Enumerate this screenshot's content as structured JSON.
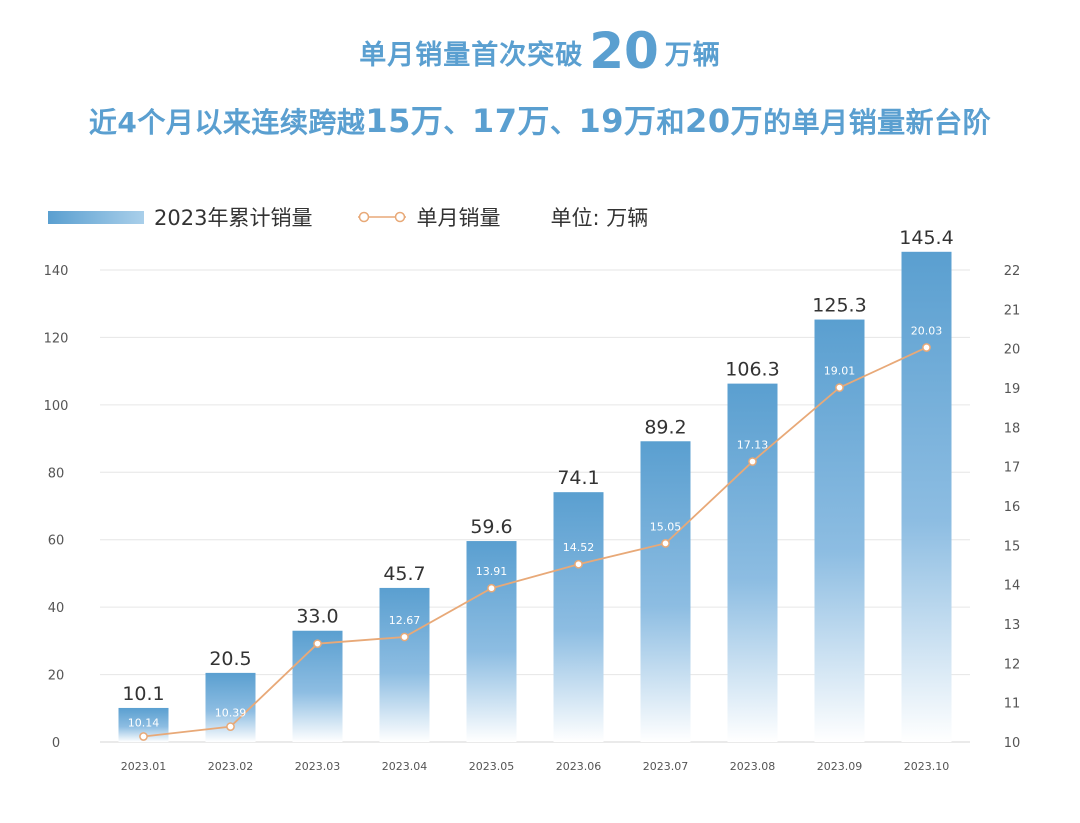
{
  "header": {
    "line1_prefix": "单月销量首次突破",
    "line1_number": "20",
    "line1_suffix": "万辆",
    "line2_parts": [
      {
        "text": "近4个月以来连续跨越",
        "big": false
      },
      {
        "text": "15万",
        "big": true
      },
      {
        "text": "、",
        "big": false
      },
      {
        "text": "17万",
        "big": true
      },
      {
        "text": "、",
        "big": false
      },
      {
        "text": "19万",
        "big": true
      },
      {
        "text": "和",
        "big": false
      },
      {
        "text": "20万",
        "big": true
      },
      {
        "text": "的单月销量新台阶",
        "big": false
      }
    ]
  },
  "legend": {
    "bar_label": "2023年累计销量",
    "line_label": "单月销量",
    "unit": "单位: 万辆"
  },
  "colors": {
    "bar_top": "#5a9fd0",
    "bar_bottom": "#ffffff",
    "line": "#e8a978",
    "headline": "#5a9fd0",
    "grid": "#e6e6e6",
    "axis_text": "#555555"
  },
  "chart_data": {
    "type": "bar",
    "categories": [
      "2023.01",
      "2023.02",
      "2023.03",
      "2023.04",
      "2023.05",
      "2023.06",
      "2023.07",
      "2023.08",
      "2023.09",
      "2023.10"
    ],
    "series": [
      {
        "name": "2023年累计销量",
        "type": "bar",
        "axis": "left",
        "values": [
          10.1,
          20.5,
          33.0,
          45.7,
          59.6,
          74.1,
          89.2,
          106.3,
          125.3,
          145.4
        ],
        "labels": [
          "10.1",
          "20.5",
          "33.0",
          "45.7",
          "59.6",
          "74.1",
          "89.2",
          "106.3",
          "125.3",
          "145.4"
        ]
      },
      {
        "name": "单月销量",
        "type": "line",
        "axis": "right",
        "values": [
          10.14,
          10.39,
          12.5,
          12.67,
          13.91,
          14.52,
          15.05,
          17.13,
          19.01,
          20.03
        ],
        "labels": [
          "10.14",
          "10.39",
          "12.50",
          "12.67",
          "13.91",
          "14.52",
          "15.05",
          "17.13",
          "19.01",
          "20.03"
        ]
      }
    ],
    "y_left": {
      "min": 0,
      "max": 140,
      "ticks": [
        0,
        20,
        40,
        60,
        80,
        100,
        120,
        140
      ]
    },
    "y_right": {
      "min": 10,
      "max": 22,
      "ticks": [
        10,
        11,
        12,
        13,
        14,
        15,
        16,
        17,
        18,
        19,
        20,
        21,
        22
      ]
    },
    "unit": "单位: 万辆",
    "grid": true,
    "legend_position": "top-left"
  }
}
